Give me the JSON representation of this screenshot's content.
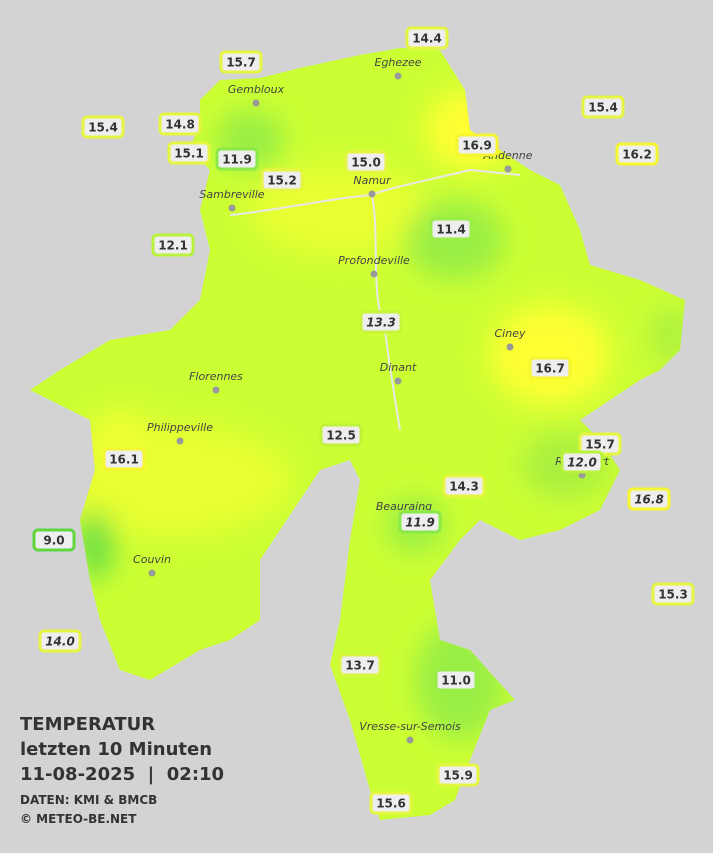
{
  "title": {
    "lines": [
      "TEMPERATUR",
      "letzten 10 Minuten",
      "11-08-2025  |  02:10"
    ],
    "source": "DATEN: KMI & BMCB",
    "copyright": "© METEO-BE.NET"
  },
  "cities": [
    "Eghezee",
    "Gembloux",
    "Andenne",
    "Namur",
    "Sambreville",
    "Profondeville",
    "Ciney",
    "Dinant",
    "Florennes",
    "Philippeville",
    "Rochefort",
    "Beauraing",
    "Couvin",
    "Vresse-sur-Semois"
  ],
  "stations": [
    {
      "label": "14.4",
      "italic": false,
      "color": "#e6f542"
    },
    {
      "label": "15.7",
      "italic": false,
      "color": "#e6f542"
    },
    {
      "label": "15.4",
      "italic": false,
      "color": "#e6f542"
    },
    {
      "label": "15.4",
      "italic": false,
      "color": "#e6f542"
    },
    {
      "label": "14.8",
      "italic": false,
      "color": "#e6f542"
    },
    {
      "label": "16.9",
      "italic": false,
      "color": "#f5f530"
    },
    {
      "label": "16.2",
      "italic": false,
      "color": "#f5f530"
    },
    {
      "label": "15.1",
      "italic": false,
      "color": "#e6f542"
    },
    {
      "label": "11.9",
      "italic": false,
      "color": "#8be84a"
    },
    {
      "label": "15.2",
      "italic": false,
      "color": "#e6f542"
    },
    {
      "label": "15.0",
      "italic": false,
      "color": "#e6f542"
    },
    {
      "label": "11.4",
      "italic": false,
      "color": "#9aec48"
    },
    {
      "label": "12.1",
      "italic": false,
      "color": "#b8f23a"
    },
    {
      "label": "13.3",
      "italic": true,
      "color": "#c8f53a"
    },
    {
      "label": "16.7",
      "italic": false,
      "color": "#f5f530"
    },
    {
      "label": "12.5",
      "italic": false,
      "color": "#c0f23a"
    },
    {
      "label": "15.7",
      "italic": false,
      "color": "#e6f542"
    },
    {
      "label": "12.0",
      "italic": true,
      "color": "#b8f23a"
    },
    {
      "label": "16.1",
      "italic": false,
      "color": "#f5f530"
    },
    {
      "label": "14.3",
      "italic": false,
      "color": "#e6f542"
    },
    {
      "label": "16.8",
      "italic": true,
      "color": "#f5f530"
    },
    {
      "label": "11.9",
      "italic": true,
      "color": "#8be84a"
    },
    {
      "label": "9.0",
      "italic": false,
      "color": "#5fd640"
    },
    {
      "label": "15.3",
      "italic": false,
      "color": "#e6f542"
    },
    {
      "label": "14.0",
      "italic": true,
      "color": "#e6f542"
    },
    {
      "label": "13.7",
      "italic": false,
      "color": "#d8f540"
    },
    {
      "label": "11.0",
      "italic": false,
      "color": "#9aec48"
    },
    {
      "label": "15.9",
      "italic": false,
      "color": "#e6f542"
    },
    {
      "label": "15.6",
      "italic": false,
      "color": "#e6f542"
    }
  ]
}
